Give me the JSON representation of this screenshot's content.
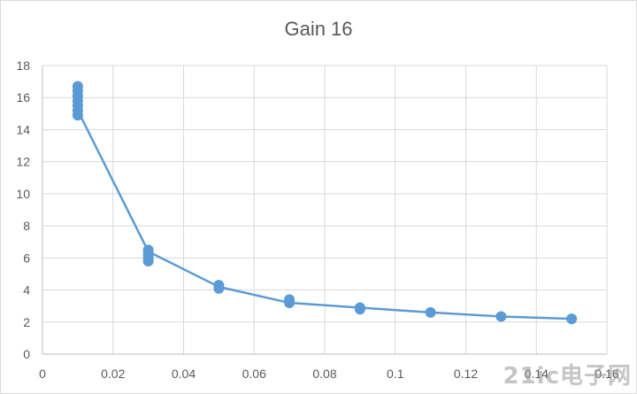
{
  "chart_data": {
    "type": "line",
    "title": "Gain 16",
    "xlabel": "",
    "ylabel": "",
    "xlim": [
      0,
      0.16
    ],
    "ylim": [
      0,
      18
    ],
    "x_ticks": [
      0,
      0.02,
      0.04,
      0.06,
      0.08,
      0.1,
      0.12,
      0.14,
      0.16
    ],
    "y_ticks": [
      0,
      2,
      4,
      6,
      8,
      10,
      12,
      14,
      16,
      18
    ],
    "x_tick_labels": [
      "0",
      "0.02",
      "0.04",
      "0.06",
      "0.08",
      "0.1",
      "0.12",
      "0.14",
      "0.16"
    ],
    "y_tick_labels": [
      "0",
      "2",
      "4",
      "6",
      "8",
      "10",
      "12",
      "14",
      "16",
      "18"
    ],
    "grid": true,
    "legend": "none",
    "series": [
      {
        "color": "#5b9bd5",
        "line": {
          "x": [
            0.01,
            0.03,
            0.05,
            0.07,
            0.09,
            0.11,
            0.13,
            0.15
          ],
          "y": [
            15.2,
            6.4,
            4.2,
            3.2,
            2.9,
            2.6,
            2.35,
            2.2
          ]
        },
        "points": [
          {
            "x": 0.01,
            "y": [
              14.9,
              15.2,
              15.5,
              15.8,
              16.1,
              16.4,
              16.7
            ]
          },
          {
            "x": 0.03,
            "y": [
              5.8,
              6.0,
              6.2,
              6.4,
              6.5
            ]
          },
          {
            "x": 0.05,
            "y": [
              4.1,
              4.3
            ]
          },
          {
            "x": 0.07,
            "y": [
              3.2,
              3.4
            ]
          },
          {
            "x": 0.09,
            "y": [
              2.8,
              2.9
            ]
          },
          {
            "x": 0.11,
            "y": [
              2.6
            ]
          },
          {
            "x": 0.13,
            "y": [
              2.35
            ]
          },
          {
            "x": 0.15,
            "y": [
              2.2
            ]
          }
        ]
      }
    ]
  },
  "watermark": {
    "text": "21ic电子网"
  }
}
